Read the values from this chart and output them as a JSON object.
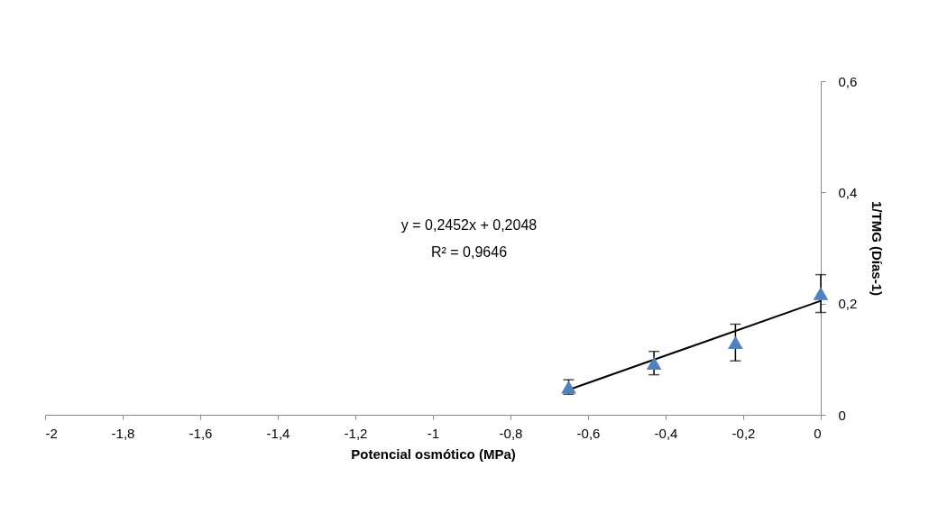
{
  "chart_data": {
    "type": "scatter",
    "xlabel": "Potencial osmótico (MPa)",
    "ylabel": "1/TMG (Días-1)",
    "xlim": [
      -2,
      0
    ],
    "ylim": [
      0,
      0.6
    ],
    "xticks": [
      -2,
      {
        "value": -1.8,
        "label": "-1,8"
      },
      {
        "value": -1.6,
        "label": "-1,6"
      },
      {
        "value": -1.4,
        "label": "-1,4"
      },
      {
        "value": -1.2,
        "label": "-1,2"
      },
      -1,
      {
        "value": -0.8,
        "label": "-0,8"
      },
      {
        "value": -0.6,
        "label": "-0,6"
      },
      {
        "value": -0.4,
        "label": "-0,4"
      },
      {
        "value": -0.2,
        "label": "-0,2"
      },
      0
    ],
    "yticks": [
      0,
      {
        "value": 0.2,
        "label": "0,2"
      },
      {
        "value": 0.4,
        "label": "0,4"
      },
      {
        "value": 0.6,
        "label": "0,6"
      }
    ],
    "grid": false,
    "series": [
      {
        "marker": "triangle",
        "color": "#4f81bd",
        "x": [
          -0.65,
          -0.43,
          -0.22,
          0
        ],
        "values": [
          0.05,
          0.093,
          0.13,
          0.218
        ],
        "errors": [
          0.013,
          0.021,
          0.033,
          0.034
        ]
      },
      {
        "type": "line",
        "marker": "none",
        "color": "#000000",
        "x": [
          -0.65,
          0
        ],
        "values": [
          0.045,
          0.205
        ]
      }
    ],
    "annotations": [
      "y = 0,2452x + 0,2048",
      "R² = 0,9646"
    ]
  }
}
